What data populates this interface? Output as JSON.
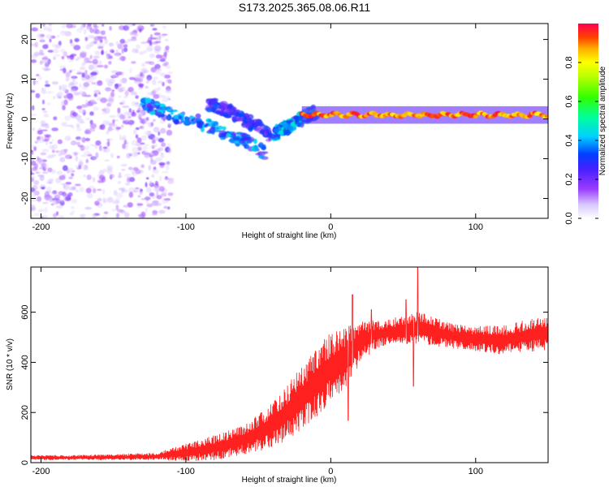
{
  "figure": {
    "title": "S173.2025.365.08.06.R11"
  },
  "chart_data": [
    {
      "type": "heatmap",
      "title": "S173.2025.365.08.06.R11",
      "xlabel": "Height of straight line (km)",
      "ylabel": "Frequency (Hz)",
      "xlim": [
        -207,
        150
      ],
      "ylim": [
        -25,
        24
      ],
      "xticks": [
        -200,
        -100,
        0,
        100
      ],
      "yticks": [
        -20,
        -10,
        0,
        10,
        20
      ],
      "colorbar": {
        "label": "Normalized spectral amplitude",
        "range": [
          0,
          1
        ],
        "ticks": [
          "0.0",
          "0.2",
          "0.4",
          "0.6",
          "0.8"
        ],
        "tick_values": [
          0.0,
          0.2,
          0.4,
          0.6,
          0.8
        ],
        "colormap": "rainbow (violet to red)"
      },
      "features": [
        {
          "name": "scattered noise",
          "x_range": [
            -207,
            -110
          ],
          "y_range": [
            -25,
            24
          ],
          "amplitude": [
            0.05,
            0.25
          ]
        },
        {
          "name": "descending streak",
          "path_x": [
            -130,
            -110,
            -90,
            -70,
            -55,
            -45
          ],
          "path_y": [
            4,
            1,
            -1,
            -4,
            -6,
            -9
          ],
          "amplitude": [
            0.2,
            0.45
          ]
        },
        {
          "name": "upper streak",
          "path_x": [
            -85,
            -70,
            -60,
            -50,
            -42
          ],
          "path_y": [
            4,
            2,
            0,
            -2,
            -4
          ],
          "amplitude": [
            0.15,
            0.35
          ]
        },
        {
          "name": "rising transition",
          "path_x": [
            -40,
            -30,
            -20,
            -10
          ],
          "path_y": [
            -4,
            -2,
            0,
            2
          ],
          "amplitude": [
            0.25,
            0.5
          ]
        },
        {
          "name": "main carrier line",
          "x_range": [
            -20,
            150
          ],
          "y": 1,
          "amplitude": [
            0.5,
            1.0
          ]
        }
      ]
    },
    {
      "type": "line",
      "xlabel": "Height of straight line (km)",
      "ylabel": "SNR (10 * v/v)",
      "xlim": [
        -207,
        150
      ],
      "ylim": [
        0,
        780
      ],
      "xticks": [
        -200,
        -100,
        0,
        100
      ],
      "yticks": [
        0,
        200,
        400,
        600
      ],
      "series": [
        {
          "name": "SNR",
          "color": "#ff2020",
          "envelope_x": [
            -207,
            -180,
            -150,
            -120,
            -100,
            -80,
            -60,
            -40,
            -30,
            -20,
            -10,
            0,
            10,
            20,
            30,
            40,
            50,
            60,
            70,
            80,
            90,
            100,
            120,
            150
          ],
          "envelope_mean": [
            20,
            20,
            22,
            25,
            40,
            60,
            90,
            150,
            200,
            260,
            320,
            380,
            420,
            480,
            510,
            520,
            530,
            540,
            525,
            510,
            500,
            495,
            490,
            520
          ],
          "noise_amplitude": [
            10,
            10,
            12,
            15,
            35,
            50,
            60,
            90,
            110,
            130,
            140,
            140,
            120,
            90,
            60,
            50,
            60,
            70,
            60,
            50,
            50,
            50,
            60,
            70
          ],
          "spikes": [
            [
              60,
              780
            ],
            [
              52,
              650
            ],
            [
              15,
              670
            ],
            [
              28,
              610
            ],
            [
              12,
              168
            ],
            [
              57,
              305
            ]
          ]
        }
      ]
    }
  ]
}
